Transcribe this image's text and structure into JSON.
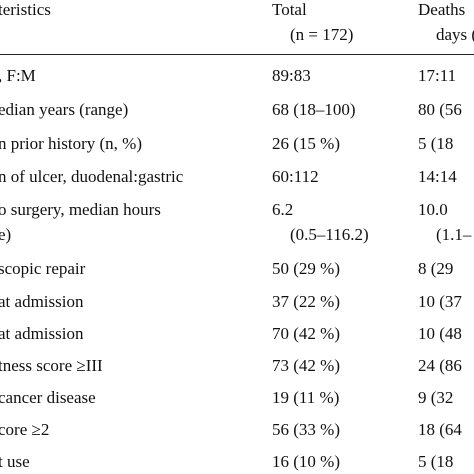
{
  "table": {
    "header": [
      [
        "teristics"
      ],
      [
        "Total",
        "(n = 172)"
      ],
      [
        "Deaths",
        "days (n"
      ]
    ],
    "rows": [
      [
        [
          ", F:M"
        ],
        [
          "89:83"
        ],
        [
          "17:11"
        ]
      ],
      [
        [
          "edian years (range)"
        ],
        [
          "68 (18–100)"
        ],
        [
          "80 (56"
        ]
      ],
      [
        [
          "n prior history (n, %)"
        ],
        [
          "26 (15 %)"
        ],
        [
          "5 (18"
        ]
      ],
      [
        [
          "n of ulcer, duodenal:gastric"
        ],
        [
          "60:112"
        ],
        [
          "14:14"
        ]
      ],
      [
        [
          "o surgery, median hours",
          "e)"
        ],
        [
          "6.2",
          "(0.5–116.2)"
        ],
        [
          "10.0",
          "(1.1–"
        ]
      ],
      [
        [
          "scopic repair"
        ],
        [
          "50 (29 %)"
        ],
        [
          "8 (29"
        ]
      ],
      [
        [
          "at admission"
        ],
        [
          "37 (22 %)"
        ],
        [
          "10 (37"
        ]
      ],
      [
        [
          "at admission"
        ],
        [
          "70 (42 %)"
        ],
        [
          "10 (48"
        ]
      ],
      [
        [
          "tness score ≥III"
        ],
        [
          "73 (42 %)"
        ],
        [
          "24 (86"
        ]
      ],
      [
        [
          "cancer disease"
        ],
        [
          "19 (11 %)"
        ],
        [
          "9 (32"
        ]
      ],
      [
        [
          "core ≥2"
        ],
        [
          "56 (33 %)"
        ],
        [
          "18 (64"
        ]
      ],
      [
        [
          "t use"
        ],
        [
          "16 (10 %)"
        ],
        [
          "5 (18"
        ]
      ]
    ]
  }
}
